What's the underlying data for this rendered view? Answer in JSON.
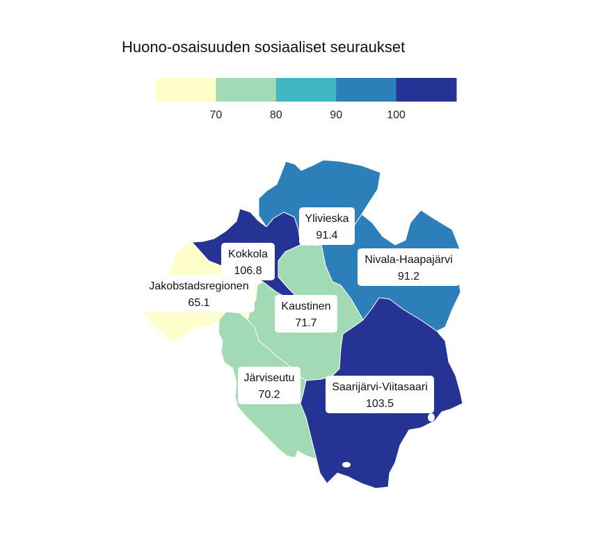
{
  "title": "Huono-osaisuuden sosiaaliset seuraukset",
  "legend": {
    "colors": [
      "#ffffcc",
      "#a1dab4",
      "#41b6c4",
      "#2c7fb8",
      "#253494"
    ],
    "ticks": [
      {
        "label": "70"
      },
      {
        "label": "80"
      },
      {
        "label": "90"
      },
      {
        "label": "100"
      }
    ]
  },
  "regions": [
    {
      "id": "ylivieska",
      "name": "Ylivieska",
      "value": "91.4",
      "color": "#2c7fb8"
    },
    {
      "id": "nivala",
      "name": "Nivala-Haapajärvi",
      "value": "91.2",
      "color": "#2c7fb8"
    },
    {
      "id": "kokkola",
      "name": "Kokkola",
      "value": "106.8",
      "color": "#253494"
    },
    {
      "id": "jakobstad",
      "name": "Jakobstadsregionen",
      "value": "65.1",
      "color": "#ffffcc"
    },
    {
      "id": "kaustinen",
      "name": "Kaustinen",
      "value": "71.7",
      "color": "#a1dab4"
    },
    {
      "id": "jarviseutu",
      "name": "Järviseutu",
      "value": "70.2",
      "color": "#a1dab4"
    },
    {
      "id": "saarijarvi",
      "name": "Saarijärvi-Viitasaari",
      "value": "103.5",
      "color": "#253494"
    }
  ]
}
